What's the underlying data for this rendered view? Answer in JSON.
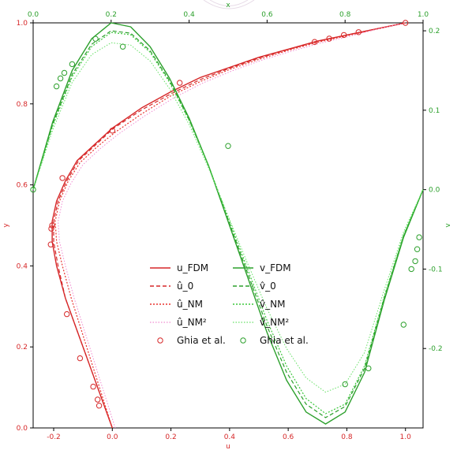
{
  "chart_data": {
    "type": "line",
    "axes": {
      "bottom": {
        "label": "u",
        "range": [
          -0.27,
          1.06
        ],
        "ticks": [
          "-0.2",
          "0.0",
          "0.2",
          "0.4",
          "0.6",
          "0.8",
          "1.0"
        ],
        "tick_values": [
          -0.2,
          0.0,
          0.2,
          0.4,
          0.6,
          0.8,
          1.0
        ],
        "color": "#d62728"
      },
      "left": {
        "label": "y",
        "range": [
          0.0,
          1.0
        ],
        "ticks": [
          "0.0",
          "0.2",
          "0.4",
          "0.6",
          "0.8",
          "1.0"
        ],
        "tick_values": [
          0.0,
          0.2,
          0.4,
          0.6,
          0.8,
          1.0
        ],
        "color": "#d62728"
      },
      "top": {
        "label": "x",
        "range": [
          0.0,
          1.0
        ],
        "ticks": [
          "0.0",
          "0.2",
          "0.4",
          "0.6",
          "0.8",
          "1.0"
        ],
        "tick_values": [
          0.0,
          0.2,
          0.4,
          0.6,
          0.8,
          1.0
        ],
        "color": "#2ca02c"
      },
      "right": {
        "label": "v",
        "range": [
          -0.3,
          0.21
        ],
        "ticks": [
          "0.2",
          "0.1",
          "0.0",
          "-0.1",
          "-0.2"
        ],
        "tick_values": [
          0.2,
          0.1,
          0.0,
          -0.1,
          -0.2
        ],
        "color": "#2ca02c"
      }
    },
    "grid": false,
    "legend": {
      "placement": "center-lower",
      "columns": [
        [
          "u_FDM",
          "û_0",
          "û_NM",
          "û_NM²",
          "Ghia et al."
        ],
        [
          "v_FDM",
          "v̂_0",
          "v̂_NM",
          "v̂_NM²",
          "Ghia et al."
        ]
      ]
    },
    "series": [
      {
        "name": "u_FDM",
        "key": "u_fdm",
        "axis": "u-y",
        "color": "#d62728",
        "dash": "solid",
        "width": 1.4,
        "x": [
          0.0,
          -0.04,
          -0.08,
          -0.12,
          -0.16,
          -0.19,
          -0.205,
          -0.205,
          -0.19,
          -0.16,
          -0.12,
          -0.06,
          0.0,
          0.1,
          0.2,
          0.3,
          0.4,
          0.5,
          0.6,
          0.7,
          0.8,
          0.9,
          1.0
        ],
        "y": [
          0.0,
          0.08,
          0.16,
          0.24,
          0.32,
          0.4,
          0.46,
          0.51,
          0.56,
          0.61,
          0.66,
          0.7,
          0.74,
          0.79,
          0.83,
          0.865,
          0.89,
          0.915,
          0.935,
          0.955,
          0.97,
          0.985,
          1.0
        ]
      },
      {
        "name": "û_0",
        "key": "u_0",
        "axis": "u-y",
        "color": "#d62728",
        "dash": "5,3",
        "width": 1.2,
        "x": [
          0.0,
          -0.04,
          -0.08,
          -0.12,
          -0.16,
          -0.185,
          -0.2,
          -0.2,
          -0.185,
          -0.155,
          -0.115,
          -0.055,
          0.005,
          0.1,
          0.2,
          0.3,
          0.4,
          0.5,
          0.6,
          0.7,
          0.8,
          0.9,
          1.0
        ],
        "y": [
          0.0,
          0.08,
          0.16,
          0.24,
          0.32,
          0.4,
          0.46,
          0.51,
          0.56,
          0.61,
          0.66,
          0.7,
          0.74,
          0.785,
          0.825,
          0.86,
          0.888,
          0.913,
          0.934,
          0.954,
          0.97,
          0.985,
          1.0
        ]
      },
      {
        "name": "û_NM",
        "key": "u_nm",
        "axis": "u-y",
        "color": "#e8332f",
        "dash": "2,2",
        "width": 1.2,
        "x": [
          0.0,
          -0.035,
          -0.07,
          -0.105,
          -0.14,
          -0.17,
          -0.19,
          -0.195,
          -0.18,
          -0.15,
          -0.11,
          -0.05,
          0.01,
          0.1,
          0.2,
          0.3,
          0.4,
          0.5,
          0.6,
          0.7,
          0.8,
          0.9,
          1.0
        ],
        "y": [
          0.0,
          0.08,
          0.16,
          0.24,
          0.32,
          0.4,
          0.46,
          0.51,
          0.56,
          0.61,
          0.655,
          0.695,
          0.73,
          0.775,
          0.82,
          0.855,
          0.885,
          0.91,
          0.932,
          0.952,
          0.968,
          0.984,
          1.0
        ]
      },
      {
        "name": "û_NM²",
        "key": "u_nm2",
        "axis": "u-y",
        "color": "#f08bd0",
        "dash": "1.5,2",
        "width": 1.0,
        "x": [
          0.01,
          -0.025,
          -0.06,
          -0.095,
          -0.13,
          -0.16,
          -0.18,
          -0.185,
          -0.17,
          -0.14,
          -0.1,
          -0.04,
          0.02,
          0.11,
          0.21,
          0.31,
          0.41,
          0.51,
          0.61,
          0.71,
          0.81,
          0.9,
          1.0
        ],
        "y": [
          0.0,
          0.08,
          0.16,
          0.24,
          0.32,
          0.4,
          0.46,
          0.51,
          0.56,
          0.605,
          0.65,
          0.69,
          0.725,
          0.77,
          0.815,
          0.852,
          0.882,
          0.908,
          0.93,
          0.95,
          0.967,
          0.984,
          1.0
        ]
      },
      {
        "name": "v_FDM",
        "key": "v_fdm",
        "axis": "x-v",
        "color": "#2ca02c",
        "dash": "solid",
        "width": 1.4,
        "x": [
          0.0,
          0.05,
          0.1,
          0.15,
          0.2,
          0.25,
          0.3,
          0.35,
          0.4,
          0.45,
          0.5,
          0.55,
          0.6,
          0.65,
          0.7,
          0.75,
          0.8,
          0.85,
          0.9,
          0.95,
          1.0
        ],
        "y": [
          0.0,
          0.085,
          0.15,
          0.19,
          0.21,
          0.205,
          0.18,
          0.14,
          0.09,
          0.03,
          -0.04,
          -0.11,
          -0.18,
          -0.24,
          -0.28,
          -0.295,
          -0.28,
          -0.23,
          -0.14,
          -0.06,
          0.0
        ]
      },
      {
        "name": "v̂_0",
        "key": "v_0",
        "axis": "x-v",
        "color": "#2ca02c",
        "dash": "5,3",
        "width": 1.2,
        "x": [
          0.0,
          0.05,
          0.1,
          0.15,
          0.2,
          0.25,
          0.3,
          0.35,
          0.4,
          0.45,
          0.5,
          0.55,
          0.6,
          0.65,
          0.7,
          0.75,
          0.8,
          0.85,
          0.9,
          0.95,
          1.0
        ],
        "y": [
          0.0,
          0.082,
          0.145,
          0.183,
          0.2,
          0.197,
          0.175,
          0.137,
          0.088,
          0.03,
          -0.038,
          -0.105,
          -0.172,
          -0.23,
          -0.27,
          -0.287,
          -0.273,
          -0.225,
          -0.137,
          -0.058,
          0.0
        ]
      },
      {
        "name": "v̂_NM",
        "key": "v_nm",
        "axis": "x-v",
        "color": "#3cc83c",
        "dash": "2,2",
        "width": 1.2,
        "x": [
          0.0,
          0.05,
          0.1,
          0.15,
          0.2,
          0.25,
          0.3,
          0.35,
          0.4,
          0.45,
          0.5,
          0.55,
          0.6,
          0.65,
          0.7,
          0.75,
          0.8,
          0.85,
          0.9,
          0.95,
          1.0
        ],
        "y": [
          0.0,
          0.08,
          0.142,
          0.18,
          0.198,
          0.195,
          0.173,
          0.135,
          0.087,
          0.03,
          -0.035,
          -0.1,
          -0.165,
          -0.222,
          -0.263,
          -0.282,
          -0.27,
          -0.222,
          -0.135,
          -0.057,
          0.0
        ]
      },
      {
        "name": "v̂_NM²",
        "key": "v_nm2",
        "axis": "x-v",
        "color": "#66e066",
        "dash": "1.5,2",
        "width": 1.0,
        "x": [
          0.0,
          0.05,
          0.1,
          0.15,
          0.2,
          0.25,
          0.3,
          0.35,
          0.4,
          0.45,
          0.5,
          0.55,
          0.6,
          0.65,
          0.7,
          0.75,
          0.8,
          0.85,
          0.9,
          0.95,
          1.0
        ],
        "y": [
          0.0,
          0.075,
          0.135,
          0.17,
          0.185,
          0.182,
          0.162,
          0.127,
          0.082,
          0.027,
          -0.033,
          -0.093,
          -0.15,
          -0.2,
          -0.237,
          -0.255,
          -0.245,
          -0.205,
          -0.127,
          -0.053,
          0.0
        ]
      }
    ],
    "markers": [
      {
        "name": "Ghia et al.",
        "key": "ghia_u",
        "axis": "u-y",
        "color": "#d62728",
        "x": [
          1.0,
          0.84,
          0.79,
          0.74,
          0.69,
          0.23,
          0.0,
          -0.17,
          -0.205,
          -0.208,
          -0.21,
          -0.155,
          -0.11,
          -0.065,
          -0.05,
          -0.045
        ],
        "y": [
          1.0,
          0.977,
          0.97,
          0.961,
          0.953,
          0.852,
          0.734,
          0.617,
          0.5,
          0.492,
          0.453,
          0.281,
          0.172,
          0.102,
          0.07,
          0.055
        ]
      },
      {
        "name": "Ghia et al.",
        "key": "ghia_v",
        "axis": "x-v",
        "color": "#2ca02c",
        "x": [
          0.0,
          0.06,
          0.07,
          0.08,
          0.1,
          0.16,
          0.23,
          0.5,
          0.8,
          0.86,
          0.95,
          0.97,
          0.98,
          0.985,
          0.99
        ],
        "y": [
          0.0,
          0.13,
          0.14,
          0.147,
          0.158,
          0.19,
          0.18,
          0.055,
          -0.245,
          -0.225,
          -0.17,
          -0.1,
          -0.09,
          -0.075,
          -0.06
        ]
      }
    ]
  }
}
